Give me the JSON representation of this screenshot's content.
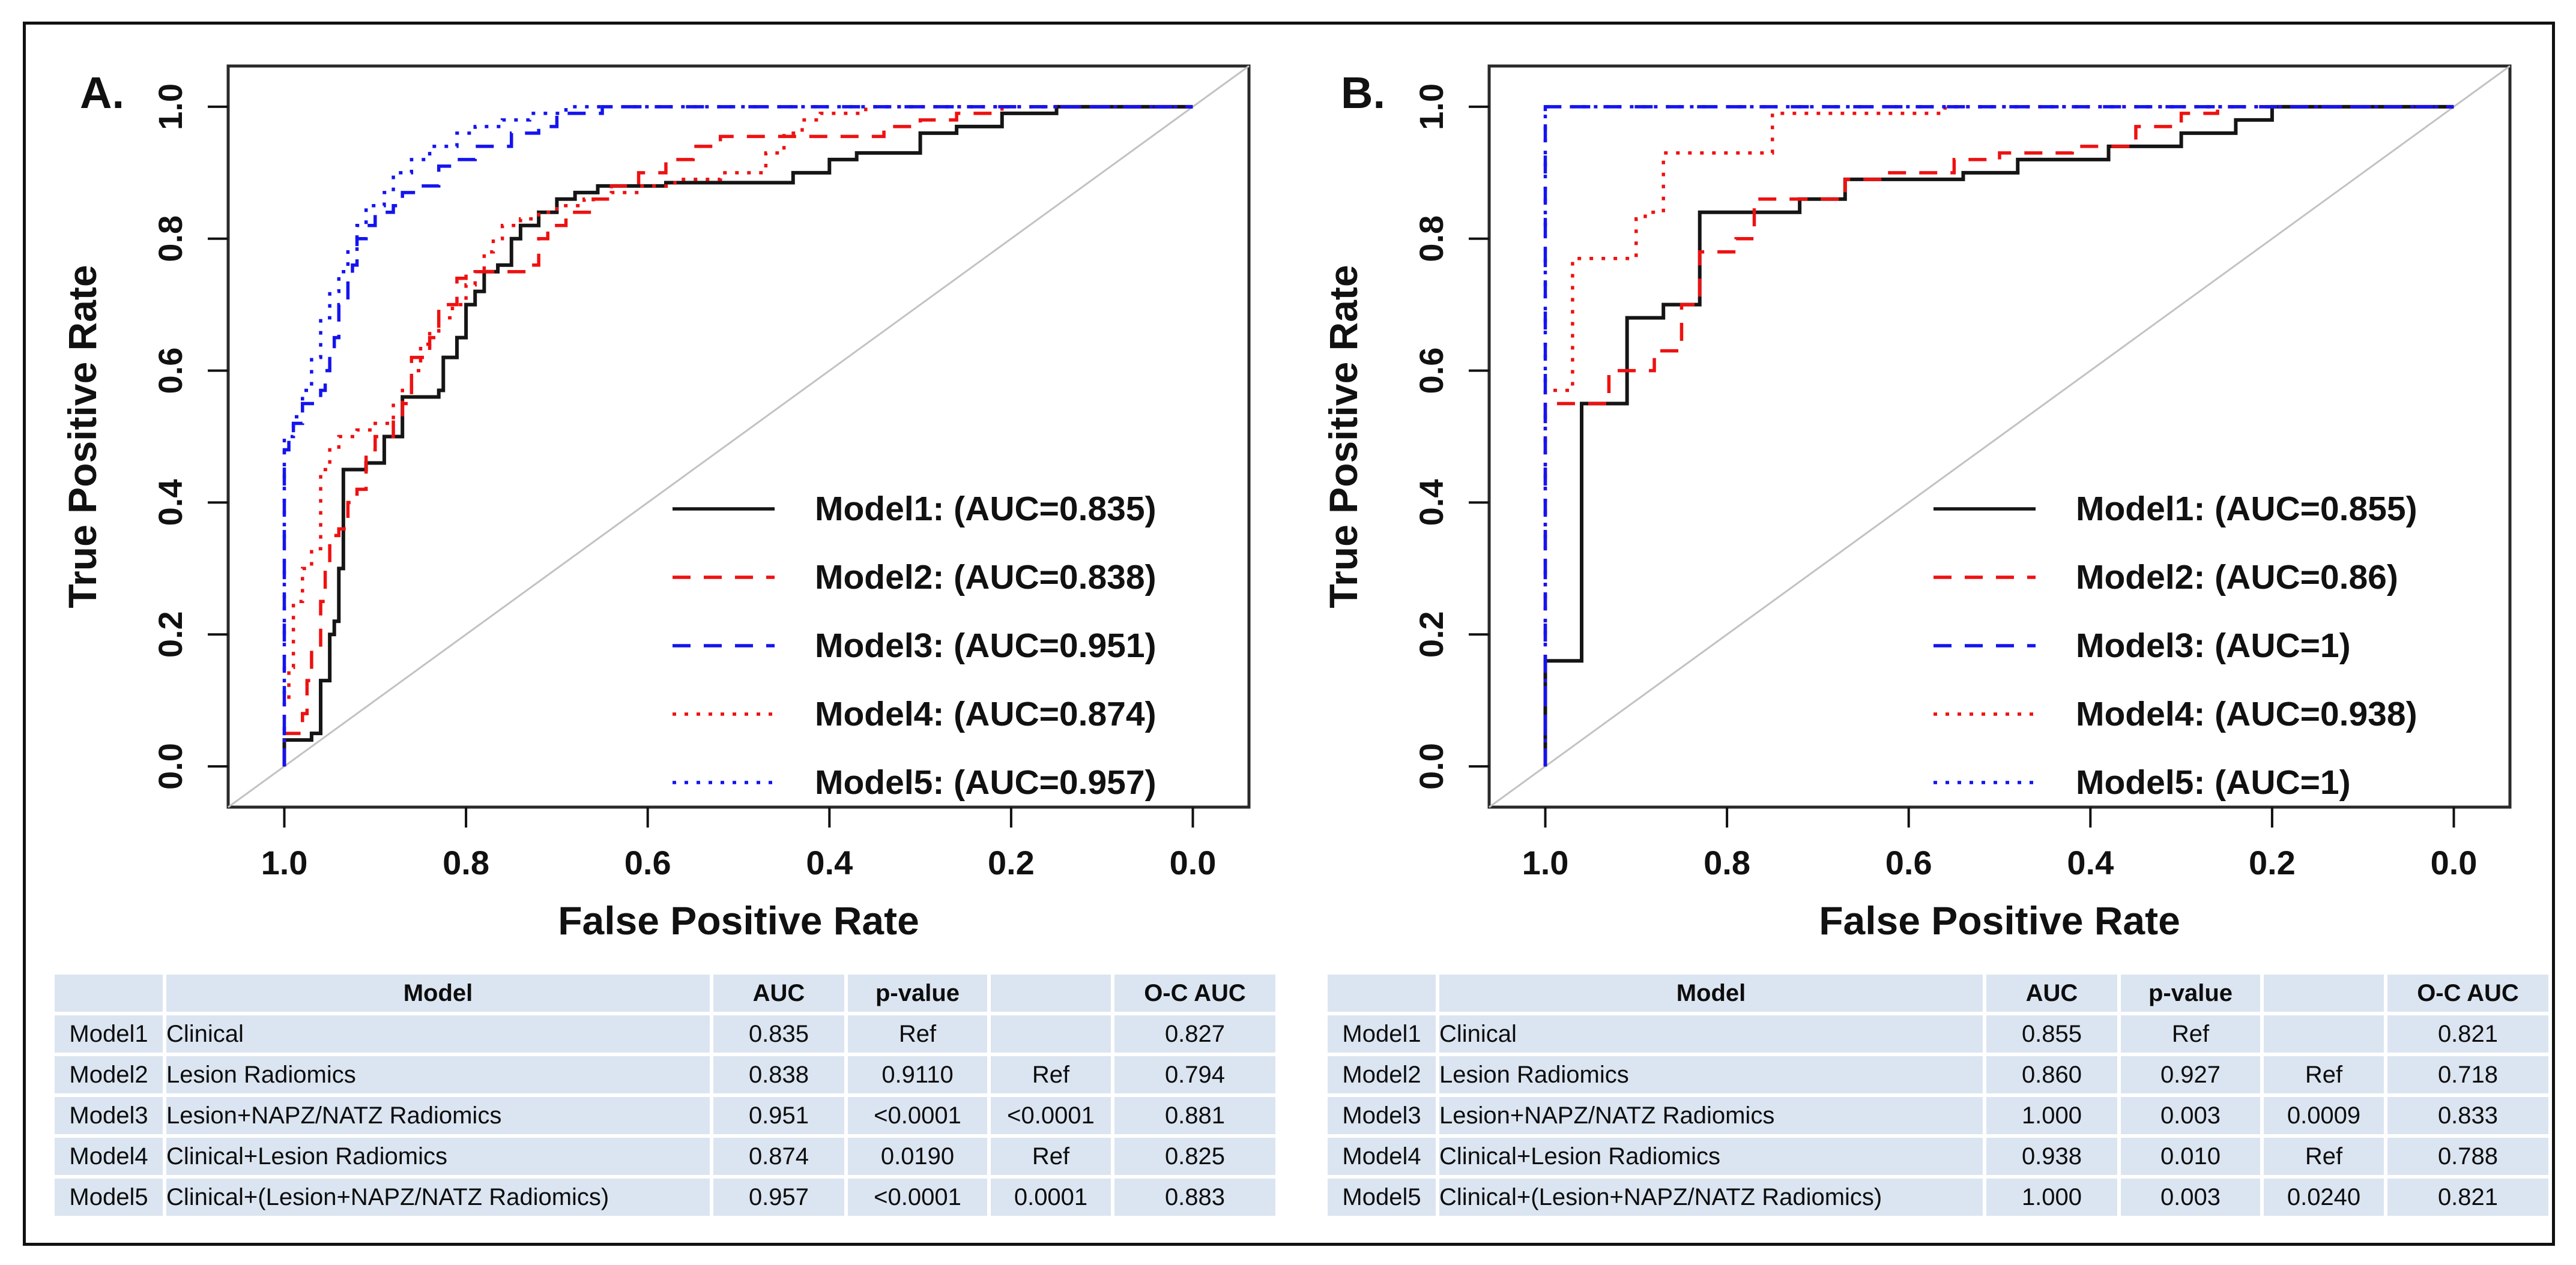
{
  "colors": {
    "black_series": "#151515",
    "red_series": "#ee1111",
    "blue_series": "#1414ee",
    "diagonal": "#c2c2c2",
    "frame": "#2a2a2a",
    "table_row_bg": "#dbe5f1",
    "page_bg": "#ffffff"
  },
  "chart_data": [
    {
      "type": "line",
      "panel_label": "A.",
      "xlabel": "False Positive Rate",
      "ylabel": "True Positive Rate",
      "x_ticks": [
        "1.0",
        "0.8",
        "0.6",
        "0.4",
        "0.2",
        "0.0"
      ],
      "y_ticks": [
        "0.0",
        "0.2",
        "0.4",
        "0.6",
        "0.8",
        "1.0"
      ],
      "x_axis_reversed": true,
      "xlim": [
        1.0,
        0.0
      ],
      "ylim": [
        0.0,
        1.0
      ],
      "grid": false,
      "diagonal_reference_line": true,
      "legend_position": "inside-bottom-right",
      "series": [
        {
          "name": "Model1",
          "auc": 0.835,
          "legend_label": "Model1: (AUC=0.835)",
          "color": "black",
          "style": "solid",
          "z": 1,
          "step_knots": [
            [
              1.0,
              0.04
            ],
            [
              0.97,
              0.05
            ],
            [
              0.96,
              0.13
            ],
            [
              0.95,
              0.2
            ],
            [
              0.945,
              0.22
            ],
            [
              0.94,
              0.3
            ],
            [
              0.935,
              0.45
            ],
            [
              0.91,
              0.46
            ],
            [
              0.89,
              0.5
            ],
            [
              0.87,
              0.56
            ],
            [
              0.83,
              0.57
            ],
            [
              0.825,
              0.62
            ],
            [
              0.81,
              0.65
            ],
            [
              0.8,
              0.7
            ],
            [
              0.79,
              0.72
            ],
            [
              0.78,
              0.75
            ],
            [
              0.765,
              0.76
            ],
            [
              0.75,
              0.8
            ],
            [
              0.74,
              0.82
            ],
            [
              0.72,
              0.84
            ],
            [
              0.7,
              0.86
            ],
            [
              0.68,
              0.87
            ],
            [
              0.655,
              0.88
            ],
            [
              0.58,
              0.885
            ],
            [
              0.44,
              0.9
            ],
            [
              0.4,
              0.92
            ],
            [
              0.37,
              0.93
            ],
            [
              0.3,
              0.96
            ],
            [
              0.26,
              0.97
            ],
            [
              0.21,
              0.99
            ],
            [
              0.15,
              1.0
            ],
            [
              0.0,
              1.0
            ]
          ]
        },
        {
          "name": "Model2",
          "auc": 0.838,
          "legend_label": "Model2: (AUC=0.838)",
          "color": "red",
          "style": "dashed",
          "z": 2,
          "step_knots": [
            [
              1.0,
              0.05
            ],
            [
              0.98,
              0.08
            ],
            [
              0.975,
              0.13
            ],
            [
              0.97,
              0.18
            ],
            [
              0.96,
              0.25
            ],
            [
              0.955,
              0.3
            ],
            [
              0.95,
              0.35
            ],
            [
              0.94,
              0.36
            ],
            [
              0.93,
              0.4
            ],
            [
              0.92,
              0.42
            ],
            [
              0.91,
              0.48
            ],
            [
              0.9,
              0.5
            ],
            [
              0.88,
              0.53
            ],
            [
              0.87,
              0.55
            ],
            [
              0.86,
              0.62
            ],
            [
              0.84,
              0.65
            ],
            [
              0.83,
              0.7
            ],
            [
              0.81,
              0.74
            ],
            [
              0.8,
              0.75
            ],
            [
              0.73,
              0.76
            ],
            [
              0.72,
              0.8
            ],
            [
              0.71,
              0.82
            ],
            [
              0.69,
              0.84
            ],
            [
              0.66,
              0.86
            ],
            [
              0.64,
              0.88
            ],
            [
              0.61,
              0.9
            ],
            [
              0.58,
              0.92
            ],
            [
              0.55,
              0.94
            ],
            [
              0.52,
              0.955
            ],
            [
              0.34,
              0.97
            ],
            [
              0.3,
              0.98
            ],
            [
              0.26,
              0.99
            ],
            [
              0.21,
              1.0
            ],
            [
              0.0,
              1.0
            ]
          ]
        },
        {
          "name": "Model3",
          "auc": 0.951,
          "legend_label": "Model3: (AUC=0.951)",
          "color": "blue",
          "style": "dashed",
          "z": 5,
          "step_knots": [
            [
              1.0,
              0.48
            ],
            [
              0.995,
              0.5
            ],
            [
              0.99,
              0.52
            ],
            [
              0.98,
              0.55
            ],
            [
              0.96,
              0.57
            ],
            [
              0.955,
              0.6
            ],
            [
              0.95,
              0.63
            ],
            [
              0.945,
              0.65
            ],
            [
              0.94,
              0.7
            ],
            [
              0.93,
              0.74
            ],
            [
              0.925,
              0.76
            ],
            [
              0.92,
              0.8
            ],
            [
              0.91,
              0.82
            ],
            [
              0.9,
              0.84
            ],
            [
              0.88,
              0.85
            ],
            [
              0.87,
              0.87
            ],
            [
              0.85,
              0.88
            ],
            [
              0.83,
              0.91
            ],
            [
              0.81,
              0.92
            ],
            [
              0.79,
              0.94
            ],
            [
              0.75,
              0.96
            ],
            [
              0.72,
              0.97
            ],
            [
              0.7,
              0.99
            ],
            [
              0.65,
              1.0
            ],
            [
              0.0,
              1.0
            ]
          ]
        },
        {
          "name": "Model4",
          "auc": 0.874,
          "legend_label": "Model4: (AUC=0.874)",
          "color": "red",
          "style": "dotted",
          "z": 3,
          "step_knots": [
            [
              1.0,
              0.1
            ],
            [
              0.995,
              0.15
            ],
            [
              0.99,
              0.25
            ],
            [
              0.98,
              0.3
            ],
            [
              0.97,
              0.33
            ],
            [
              0.96,
              0.45
            ],
            [
              0.95,
              0.48
            ],
            [
              0.94,
              0.5
            ],
            [
              0.92,
              0.51
            ],
            [
              0.9,
              0.52
            ],
            [
              0.88,
              0.55
            ],
            [
              0.87,
              0.57
            ],
            [
              0.86,
              0.6
            ],
            [
              0.85,
              0.64
            ],
            [
              0.84,
              0.66
            ],
            [
              0.83,
              0.68
            ],
            [
              0.815,
              0.7
            ],
            [
              0.8,
              0.73
            ],
            [
              0.79,
              0.75
            ],
            [
              0.78,
              0.78
            ],
            [
              0.77,
              0.8
            ],
            [
              0.76,
              0.82
            ],
            [
              0.74,
              0.83
            ],
            [
              0.72,
              0.84
            ],
            [
              0.7,
              0.85
            ],
            [
              0.67,
              0.86
            ],
            [
              0.64,
              0.87
            ],
            [
              0.61,
              0.88
            ],
            [
              0.57,
              0.89
            ],
            [
              0.52,
              0.9
            ],
            [
              0.47,
              0.93
            ],
            [
              0.45,
              0.96
            ],
            [
              0.43,
              0.98
            ],
            [
              0.41,
              0.99
            ],
            [
              0.36,
              1.0
            ],
            [
              0.0,
              1.0
            ]
          ]
        },
        {
          "name": "Model5",
          "auc": 0.957,
          "legend_label": "Model5: (AUC=0.957)",
          "color": "blue",
          "style": "dotted",
          "z": 4,
          "step_knots": [
            [
              1.0,
              0.5
            ],
            [
              0.99,
              0.53
            ],
            [
              0.98,
              0.57
            ],
            [
              0.97,
              0.62
            ],
            [
              0.96,
              0.68
            ],
            [
              0.95,
              0.72
            ],
            [
              0.94,
              0.75
            ],
            [
              0.93,
              0.78
            ],
            [
              0.92,
              0.82
            ],
            [
              0.91,
              0.85
            ],
            [
              0.89,
              0.87
            ],
            [
              0.88,
              0.9
            ],
            [
              0.86,
              0.92
            ],
            [
              0.84,
              0.94
            ],
            [
              0.81,
              0.96
            ],
            [
              0.79,
              0.97
            ],
            [
              0.76,
              0.98
            ],
            [
              0.73,
              0.99
            ],
            [
              0.69,
              1.0
            ],
            [
              0.0,
              1.0
            ]
          ]
        }
      ]
    },
    {
      "type": "line",
      "panel_label": "B.",
      "xlabel": "False Positive Rate",
      "ylabel": "True Positive Rate",
      "x_ticks": [
        "1.0",
        "0.8",
        "0.6",
        "0.4",
        "0.2",
        "0.0"
      ],
      "y_ticks": [
        "0.0",
        "0.2",
        "0.4",
        "0.6",
        "0.8",
        "1.0"
      ],
      "x_axis_reversed": true,
      "xlim": [
        1.0,
        0.0
      ],
      "ylim": [
        0.0,
        1.0
      ],
      "grid": false,
      "diagonal_reference_line": true,
      "legend_position": "inside-bottom-right",
      "series": [
        {
          "name": "Model1",
          "auc": 0.855,
          "legend_label": "Model1: (AUC=0.855)",
          "color": "black",
          "style": "solid",
          "z": 1,
          "step_knots": [
            [
              1.0,
              0.16
            ],
            [
              0.96,
              0.55
            ],
            [
              0.91,
              0.68
            ],
            [
              0.87,
              0.7
            ],
            [
              0.83,
              0.84
            ],
            [
              0.72,
              0.86
            ],
            [
              0.67,
              0.89
            ],
            [
              0.54,
              0.9
            ],
            [
              0.48,
              0.92
            ],
            [
              0.38,
              0.94
            ],
            [
              0.3,
              0.96
            ],
            [
              0.24,
              0.98
            ],
            [
              0.2,
              1.0
            ],
            [
              0.0,
              1.0
            ]
          ]
        },
        {
          "name": "Model2",
          "auc": 0.86,
          "legend_label": "Model2: (AUC=0.86)",
          "color": "red",
          "style": "dashed",
          "z": 2,
          "step_knots": [
            [
              1.0,
              0.55
            ],
            [
              0.93,
              0.6
            ],
            [
              0.88,
              0.63
            ],
            [
              0.85,
              0.7
            ],
            [
              0.83,
              0.78
            ],
            [
              0.79,
              0.8
            ],
            [
              0.77,
              0.86
            ],
            [
              0.67,
              0.89
            ],
            [
              0.63,
              0.9
            ],
            [
              0.55,
              0.92
            ],
            [
              0.5,
              0.93
            ],
            [
              0.42,
              0.94
            ],
            [
              0.35,
              0.97
            ],
            [
              0.3,
              0.99
            ],
            [
              0.26,
              1.0
            ],
            [
              0.0,
              1.0
            ]
          ]
        },
        {
          "name": "Model3",
          "auc": 1,
          "legend_label": "Model3: (AUC=1)",
          "color": "blue",
          "style": "dashed",
          "z": 5,
          "step_knots": [
            [
              1.0,
              1.0
            ],
            [
              0.0,
              1.0
            ]
          ]
        },
        {
          "name": "Model4",
          "auc": 0.938,
          "legend_label": "Model4: (AUC=0.938)",
          "color": "red",
          "style": "dotted",
          "z": 3,
          "step_knots": [
            [
              1.0,
              0.57
            ],
            [
              0.97,
              0.77
            ],
            [
              0.9,
              0.83
            ],
            [
              0.89,
              0.84
            ],
            [
              0.87,
              0.93
            ],
            [
              0.75,
              0.99
            ],
            [
              0.56,
              1.0
            ],
            [
              0.0,
              1.0
            ]
          ]
        },
        {
          "name": "Model5",
          "auc": 1,
          "legend_label": "Model5: (AUC=1)",
          "color": "blue",
          "style": "dotted",
          "z": 4,
          "step_knots": [
            [
              1.0,
              1.0
            ],
            [
              0.0,
              1.0
            ]
          ]
        }
      ]
    }
  ],
  "tables": [
    {
      "headers": [
        "",
        "Model",
        "AUC",
        "p-value",
        "",
        "O-C AUC"
      ],
      "rows": [
        [
          "Model1",
          "Clinical",
          "0.835",
          "Ref",
          "",
          "0.827"
        ],
        [
          "Model2",
          "Lesion Radiomics",
          "0.838",
          "0.9110",
          "Ref",
          "0.794"
        ],
        [
          "Model3",
          "Lesion+NAPZ/NATZ Radiomics",
          "0.951",
          "<0.0001",
          "<0.0001",
          "0.881"
        ],
        [
          "Model4",
          "Clinical+Lesion Radiomics",
          "0.874",
          "0.0190",
          "Ref",
          "0.825"
        ],
        [
          "Model5",
          "Clinical+(Lesion+NAPZ/NATZ Radiomics)",
          "0.957",
          "<0.0001",
          "0.0001",
          "0.883"
        ]
      ]
    },
    {
      "headers": [
        "",
        "Model",
        "AUC",
        "p-value",
        "",
        "O-C AUC"
      ],
      "rows": [
        [
          "Model1",
          "Clinical",
          "0.855",
          "Ref",
          "",
          "0.821"
        ],
        [
          "Model2",
          "Lesion Radiomics",
          "0.860",
          "0.927",
          "Ref",
          "0.718"
        ],
        [
          "Model3",
          "Lesion+NAPZ/NATZ Radiomics",
          "1.000",
          "0.003",
          "0.0009",
          "0.833"
        ],
        [
          "Model4",
          "Clinical+Lesion Radiomics",
          "0.938",
          "0.010",
          "Ref",
          "0.788"
        ],
        [
          "Model5",
          "Clinical+(Lesion+NAPZ/NATZ Radiomics)",
          "1.000",
          "0.003",
          "0.0240",
          "0.821"
        ]
      ]
    }
  ]
}
